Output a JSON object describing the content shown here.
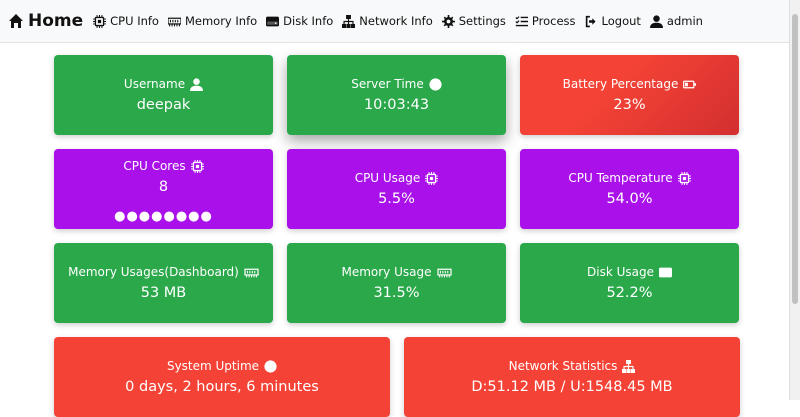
{
  "nav": {
    "brand": "Home",
    "items": [
      "CPU Info",
      "Memory Info",
      "Disk Info",
      "Network Info",
      "Settings",
      "Process",
      "Logout",
      "admin"
    ]
  },
  "cards": [
    {
      "title": "Username",
      "value": "deepak"
    },
    {
      "title": "Server Time",
      "value": "10:03:43"
    },
    {
      "title": "Battery Percentage",
      "value": "23%"
    },
    {
      "title": "CPU Cores",
      "value": "8"
    },
    {
      "title": "CPU Usage",
      "value": "5.5%"
    },
    {
      "title": "CPU Temperature",
      "value": "54.0%"
    },
    {
      "title": "Memory Usages(Dashboard)",
      "value": "53 MB"
    },
    {
      "title": "Memory Usage",
      "value": "31.5%"
    },
    {
      "title": "Disk Usage",
      "value": "52.2%"
    },
    {
      "title": "System Uptime",
      "value": "0 days, 2 hours, 6 minutes"
    },
    {
      "title": "Network Statistics",
      "value": "D:51.12 MB / U:1548.45 MB"
    }
  ]
}
